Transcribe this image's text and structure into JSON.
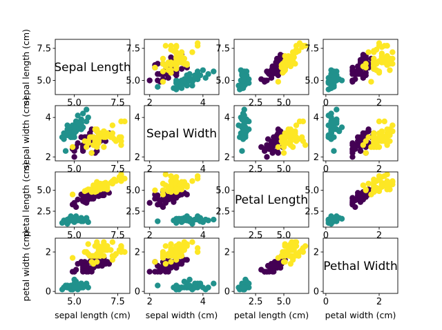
{
  "chart_data": {
    "type": "scatter",
    "title": "",
    "variables": [
      "sepal length (cm)",
      "sepal width (cm)",
      "petal length (cm)",
      "petal width (cm)"
    ],
    "diagonal_titles": [
      "Sepal Length",
      "Sepal Width",
      "Petal Length",
      "Pethal Width"
    ],
    "axis_ranges": [
      [
        3.9,
        8.2
      ],
      [
        1.8,
        4.6
      ],
      [
        0.6,
        7.2
      ],
      [
        -0.1,
        2.7
      ]
    ],
    "ticks": [
      {
        "values": [
          5.0,
          7.5
        ],
        "labels": [
          "5.0",
          "7.5"
        ]
      },
      {
        "values": [
          2,
          4
        ],
        "labels": [
          "2",
          "4"
        ]
      },
      {
        "values": [
          2.5,
          5.0
        ],
        "labels": [
          "2.5",
          "5.0"
        ]
      },
      {
        "values": [
          0,
          2
        ],
        "labels": [
          "0",
          "2"
        ]
      }
    ],
    "grid": false,
    "legend": "none",
    "colors": {
      "class_0": "#440154",
      "class_1": "#21918c",
      "class_2": "#fde725"
    },
    "marker_class_order": [
      "class_0",
      "class_1",
      "class_2"
    ],
    "series": [
      {
        "class": "class_1",
        "points": [
          [
            5.1,
            3.5,
            1.4,
            0.2
          ],
          [
            4.9,
            3.0,
            1.4,
            0.2
          ],
          [
            4.7,
            3.2,
            1.3,
            0.2
          ],
          [
            4.6,
            3.1,
            1.5,
            0.2
          ],
          [
            5.0,
            3.6,
            1.4,
            0.2
          ],
          [
            5.4,
            3.9,
            1.7,
            0.4
          ],
          [
            4.6,
            3.4,
            1.4,
            0.3
          ],
          [
            5.0,
            3.4,
            1.5,
            0.2
          ],
          [
            4.4,
            2.9,
            1.4,
            0.2
          ],
          [
            4.9,
            3.1,
            1.5,
            0.1
          ],
          [
            5.4,
            3.7,
            1.5,
            0.2
          ],
          [
            4.8,
            3.4,
            1.6,
            0.2
          ],
          [
            4.8,
            3.0,
            1.4,
            0.1
          ],
          [
            4.3,
            3.0,
            1.1,
            0.1
          ],
          [
            5.8,
            4.0,
            1.2,
            0.2
          ],
          [
            5.7,
            4.4,
            1.5,
            0.4
          ],
          [
            5.4,
            3.9,
            1.3,
            0.4
          ],
          [
            5.1,
            3.5,
            1.4,
            0.3
          ],
          [
            5.7,
            3.8,
            1.7,
            0.3
          ],
          [
            5.1,
            3.8,
            1.5,
            0.3
          ],
          [
            5.4,
            3.4,
            1.7,
            0.2
          ],
          [
            5.1,
            3.7,
            1.5,
            0.4
          ],
          [
            4.6,
            3.6,
            1.0,
            0.2
          ],
          [
            5.1,
            3.3,
            1.7,
            0.5
          ],
          [
            4.8,
            3.4,
            1.9,
            0.2
          ],
          [
            5.0,
            3.0,
            1.6,
            0.2
          ],
          [
            5.0,
            3.4,
            1.6,
            0.4
          ],
          [
            5.2,
            3.5,
            1.5,
            0.2
          ],
          [
            5.2,
            3.4,
            1.4,
            0.2
          ],
          [
            4.7,
            3.2,
            1.6,
            0.2
          ],
          [
            4.8,
            3.1,
            1.6,
            0.2
          ],
          [
            5.4,
            3.4,
            1.5,
            0.4
          ],
          [
            5.2,
            4.1,
            1.5,
            0.1
          ],
          [
            5.5,
            4.2,
            1.4,
            0.2
          ],
          [
            4.9,
            3.1,
            1.5,
            0.2
          ],
          [
            5.0,
            3.2,
            1.2,
            0.2
          ],
          [
            5.5,
            3.5,
            1.3,
            0.2
          ],
          [
            4.9,
            3.6,
            1.4,
            0.1
          ],
          [
            4.4,
            3.0,
            1.3,
            0.2
          ],
          [
            5.1,
            3.4,
            1.5,
            0.2
          ],
          [
            5.0,
            3.5,
            1.3,
            0.3
          ],
          [
            4.5,
            2.3,
            1.3,
            0.3
          ],
          [
            4.4,
            3.2,
            1.3,
            0.2
          ],
          [
            5.0,
            3.5,
            1.6,
            0.6
          ],
          [
            5.1,
            3.8,
            1.9,
            0.4
          ],
          [
            4.8,
            3.0,
            1.4,
            0.3
          ],
          [
            5.1,
            3.8,
            1.6,
            0.2
          ],
          [
            4.6,
            3.2,
            1.4,
            0.2
          ],
          [
            5.3,
            3.7,
            1.5,
            0.2
          ],
          [
            5.0,
            3.3,
            1.4,
            0.2
          ]
        ]
      },
      {
        "class": "class_0",
        "points": [
          [
            7.0,
            3.2,
            4.7,
            1.4
          ],
          [
            6.4,
            3.2,
            4.5,
            1.5
          ],
          [
            6.9,
            3.1,
            4.9,
            1.5
          ],
          [
            5.5,
            2.3,
            4.0,
            1.3
          ],
          [
            6.5,
            2.8,
            4.6,
            1.5
          ],
          [
            5.7,
            2.8,
            4.5,
            1.3
          ],
          [
            6.3,
            3.3,
            4.7,
            1.6
          ],
          [
            4.9,
            2.4,
            3.3,
            1.0
          ],
          [
            6.6,
            2.9,
            4.6,
            1.3
          ],
          [
            5.2,
            2.7,
            3.9,
            1.4
          ],
          [
            5.0,
            2.0,
            3.5,
            1.0
          ],
          [
            5.9,
            3.0,
            4.2,
            1.5
          ],
          [
            6.0,
            2.2,
            4.0,
            1.0
          ],
          [
            6.1,
            2.9,
            4.7,
            1.4
          ],
          [
            5.6,
            2.9,
            3.6,
            1.3
          ],
          [
            6.7,
            3.1,
            4.4,
            1.4
          ],
          [
            5.6,
            3.0,
            4.5,
            1.5
          ],
          [
            5.8,
            2.7,
            4.1,
            1.0
          ],
          [
            6.2,
            2.2,
            4.5,
            1.5
          ],
          [
            5.6,
            2.5,
            3.9,
            1.1
          ],
          [
            5.9,
            3.2,
            4.8,
            1.8
          ],
          [
            6.1,
            2.8,
            4.0,
            1.3
          ],
          [
            6.3,
            2.5,
            4.9,
            1.5
          ],
          [
            6.1,
            2.8,
            4.7,
            1.2
          ],
          [
            6.4,
            2.9,
            4.3,
            1.3
          ],
          [
            6.6,
            3.0,
            4.4,
            1.4
          ],
          [
            6.8,
            2.8,
            4.8,
            1.4
          ],
          [
            6.7,
            3.0,
            5.0,
            1.7
          ],
          [
            6.0,
            2.9,
            4.5,
            1.5
          ],
          [
            5.7,
            2.6,
            3.5,
            1.0
          ],
          [
            5.5,
            2.4,
            3.8,
            1.1
          ],
          [
            5.5,
            2.4,
            3.7,
            1.0
          ],
          [
            5.8,
            2.7,
            3.9,
            1.2
          ],
          [
            6.0,
            2.7,
            5.1,
            1.6
          ],
          [
            5.4,
            3.0,
            4.5,
            1.5
          ],
          [
            6.0,
            3.4,
            4.5,
            1.6
          ],
          [
            6.7,
            3.1,
            4.7,
            1.5
          ],
          [
            6.3,
            2.3,
            4.4,
            1.3
          ],
          [
            5.6,
            3.0,
            4.1,
            1.3
          ],
          [
            5.5,
            2.5,
            4.0,
            1.3
          ],
          [
            5.5,
            2.6,
            4.4,
            1.2
          ],
          [
            6.1,
            3.0,
            4.6,
            1.4
          ],
          [
            5.8,
            2.6,
            4.0,
            1.2
          ],
          [
            5.0,
            2.3,
            3.3,
            1.0
          ],
          [
            5.6,
            2.7,
            4.2,
            1.3
          ],
          [
            5.7,
            3.0,
            4.2,
            1.2
          ],
          [
            5.7,
            2.9,
            4.2,
            1.3
          ],
          [
            6.2,
            2.9,
            4.3,
            1.3
          ],
          [
            5.1,
            2.5,
            3.0,
            1.1
          ],
          [
            5.7,
            2.8,
            4.1,
            1.3
          ]
        ]
      },
      {
        "class": "class_2",
        "points": [
          [
            6.3,
            3.3,
            6.0,
            2.5
          ],
          [
            5.8,
            2.7,
            5.1,
            1.9
          ],
          [
            7.1,
            3.0,
            5.9,
            2.1
          ],
          [
            6.3,
            2.9,
            5.6,
            1.8
          ],
          [
            6.5,
            3.0,
            5.8,
            2.2
          ],
          [
            7.6,
            3.0,
            6.6,
            2.1
          ],
          [
            4.9,
            2.5,
            4.5,
            1.7
          ],
          [
            7.3,
            2.9,
            6.3,
            1.8
          ],
          [
            6.7,
            2.5,
            5.8,
            1.8
          ],
          [
            7.2,
            3.6,
            6.1,
            2.5
          ],
          [
            6.5,
            3.2,
            5.1,
            2.0
          ],
          [
            6.4,
            2.7,
            5.3,
            1.9
          ],
          [
            6.8,
            3.0,
            5.5,
            2.1
          ],
          [
            5.7,
            2.5,
            5.0,
            2.0
          ],
          [
            5.8,
            2.8,
            5.1,
            2.4
          ],
          [
            6.4,
            3.2,
            5.3,
            2.3
          ],
          [
            6.5,
            3.0,
            5.5,
            1.8
          ],
          [
            7.7,
            3.8,
            6.7,
            2.2
          ],
          [
            7.7,
            2.6,
            6.9,
            2.3
          ],
          [
            6.0,
            2.2,
            5.0,
            1.5
          ],
          [
            6.9,
            3.2,
            5.7,
            2.3
          ],
          [
            5.6,
            2.8,
            4.9,
            2.0
          ],
          [
            7.7,
            2.8,
            6.7,
            2.0
          ],
          [
            6.3,
            2.7,
            4.9,
            1.8
          ],
          [
            6.7,
            3.3,
            5.7,
            2.1
          ],
          [
            7.2,
            3.2,
            6.0,
            1.8
          ],
          [
            6.2,
            2.8,
            4.8,
            1.8
          ],
          [
            6.1,
            3.0,
            4.9,
            1.8
          ],
          [
            6.4,
            2.8,
            5.6,
            2.1
          ],
          [
            7.2,
            3.0,
            5.8,
            1.6
          ],
          [
            7.4,
            2.8,
            6.1,
            1.9
          ],
          [
            7.9,
            3.8,
            6.4,
            2.0
          ],
          [
            6.4,
            2.8,
            5.6,
            2.2
          ],
          [
            6.3,
            2.8,
            5.1,
            1.5
          ],
          [
            6.1,
            2.6,
            5.6,
            1.4
          ],
          [
            7.7,
            3.0,
            6.1,
            2.3
          ],
          [
            6.3,
            3.4,
            5.6,
            2.4
          ],
          [
            6.4,
            3.1,
            5.5,
            1.8
          ],
          [
            6.0,
            3.0,
            4.8,
            1.8
          ],
          [
            6.9,
            3.1,
            5.4,
            2.1
          ],
          [
            6.7,
            3.1,
            5.6,
            2.4
          ],
          [
            6.9,
            3.1,
            5.1,
            2.3
          ],
          [
            5.8,
            2.7,
            5.1,
            1.9
          ],
          [
            6.8,
            3.2,
            5.9,
            2.3
          ],
          [
            6.7,
            3.3,
            5.7,
            2.5
          ],
          [
            6.7,
            3.0,
            5.2,
            2.3
          ],
          [
            6.3,
            2.5,
            5.0,
            1.9
          ],
          [
            6.5,
            3.0,
            5.2,
            2.0
          ],
          [
            6.2,
            3.4,
            5.4,
            2.3
          ],
          [
            5.9,
            3.0,
            5.1,
            1.8
          ]
        ]
      }
    ]
  }
}
